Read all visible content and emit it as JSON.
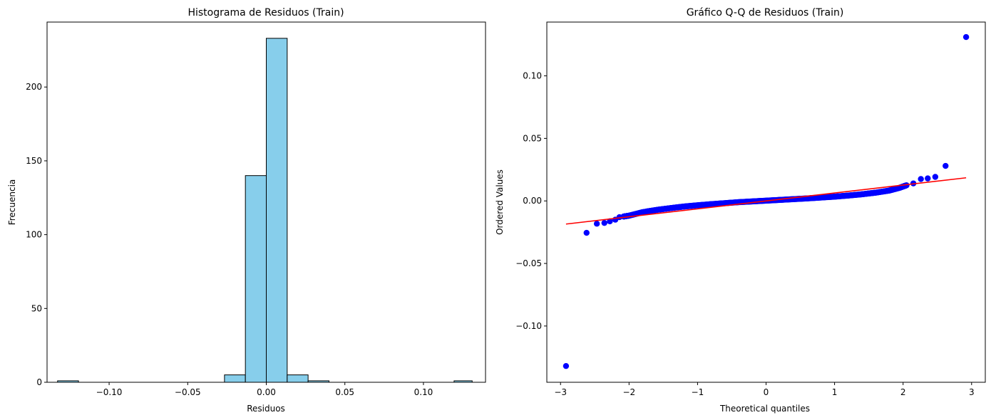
{
  "chart_data": [
    {
      "type": "bar",
      "title": "Histograma de Residuos (Train)",
      "xlabel": "Residuos",
      "ylabel": "Frecuencia",
      "xlim": [
        -0.1395,
        0.1395
      ],
      "ylim": [
        0,
        244
      ],
      "xticks": [
        -0.1,
        -0.05,
        0.0,
        0.05,
        0.1
      ],
      "xtick_labels": [
        "−0.10",
        "−0.05",
        "0.00",
        "0.05",
        "0.10"
      ],
      "yticks": [
        0,
        50,
        100,
        150,
        200
      ],
      "ytick_labels": [
        "0",
        "50",
        "100",
        "150",
        "200"
      ],
      "bin_edges": [
        -0.1328,
        -0.1195,
        -0.1063,
        -0.093,
        -0.0797,
        -0.0664,
        -0.0531,
        -0.0399,
        -0.0266,
        -0.0133,
        0.0,
        0.0133,
        0.0266,
        0.0399,
        0.0531,
        0.0664,
        0.0797,
        0.093,
        0.1063,
        0.1195,
        0.131
      ],
      "values": [
        1,
        0,
        0,
        0,
        0,
        0,
        0,
        0,
        5,
        140,
        233,
        5,
        1,
        0,
        0,
        0,
        0,
        0,
        0,
        1
      ],
      "colors": {
        "fill": "#87ceeb",
        "edge": "#000000"
      },
      "grid": false
    },
    {
      "type": "scatter",
      "title": "Gráfico Q-Q de Residuos (Train)",
      "xlabel": "Theoretical quantiles",
      "ylabel": "Ordered Values",
      "xlim": [
        -3.2,
        3.2
      ],
      "ylim": [
        -0.145,
        0.143
      ],
      "xticks": [
        -3,
        -2,
        -1,
        0,
        1,
        2,
        3
      ],
      "xtick_labels": [
        "−3",
        "−2",
        "−1",
        "0",
        "1",
        "2",
        "3"
      ],
      "yticks": [
        -0.1,
        -0.05,
        0.0,
        0.05,
        0.1
      ],
      "ytick_labels": [
        "−0.10",
        "−0.05",
        "0.00",
        "0.05",
        "0.10"
      ],
      "points": [
        [
          -2.92,
          -0.132
        ],
        [
          -2.62,
          -0.0255
        ],
        [
          -2.47,
          -0.0182
        ],
        [
          -2.36,
          -0.0176
        ],
        [
          -2.28,
          -0.0163
        ],
        [
          -2.2,
          -0.015
        ],
        [
          -2.14,
          -0.013
        ],
        [
          -2.08,
          -0.0125
        ],
        [
          -2.0,
          -0.0118
        ],
        [
          -1.8,
          -0.009
        ],
        [
          -1.6,
          -0.0072
        ],
        [
          -1.4,
          -0.0058
        ],
        [
          -1.2,
          -0.0045
        ],
        [
          -1.0,
          -0.0035
        ],
        [
          -0.8,
          -0.0026
        ],
        [
          -0.6,
          -0.0018
        ],
        [
          -0.4,
          -0.001
        ],
        [
          -0.2,
          -0.0004
        ],
        [
          0.0,
          0.0002
        ],
        [
          0.2,
          0.0008
        ],
        [
          0.4,
          0.0014
        ],
        [
          0.6,
          0.002
        ],
        [
          0.8,
          0.0027
        ],
        [
          1.0,
          0.0034
        ],
        [
          1.2,
          0.0043
        ],
        [
          1.4,
          0.0053
        ],
        [
          1.6,
          0.0066
        ],
        [
          1.8,
          0.0083
        ],
        [
          1.95,
          0.0105
        ],
        [
          2.05,
          0.0125
        ],
        [
          2.15,
          0.014
        ],
        [
          2.26,
          0.0175
        ],
        [
          2.36,
          0.018
        ],
        [
          2.47,
          0.0192
        ],
        [
          2.62,
          0.028
        ],
        [
          2.92,
          0.131
        ]
      ],
      "fit_line": {
        "x": [
          -2.92,
          2.92
        ],
        "y": [
          -0.0185,
          0.0185
        ]
      },
      "colors": {
        "points": "#0000ff",
        "line": "#ff0000"
      },
      "grid": false
    }
  ]
}
